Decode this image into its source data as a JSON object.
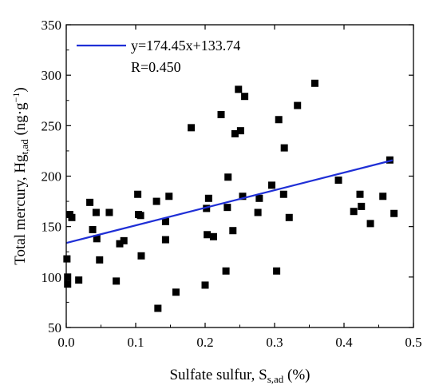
{
  "chart_data": {
    "type": "scatter",
    "xlabel": "Sulfate sulfur, S",
    "xlabel_sub": "s,ad",
    "xlabel_suffix": " (%)",
    "ylabel": "Total mercury, Hg",
    "ylabel_sub": "t,ad",
    "ylabel_suffix": " (ng·g",
    "ylabel_sup": "−1",
    "ylabel_close": ")",
    "xlim": [
      0.0,
      0.5
    ],
    "ylim": [
      50,
      350
    ],
    "xticks": [
      0.0,
      0.1,
      0.2,
      0.3,
      0.4,
      0.5
    ],
    "xtick_labels": [
      "0.0",
      "0.1",
      "0.2",
      "0.3",
      "0.4",
      "0.5"
    ],
    "yticks": [
      50,
      100,
      150,
      200,
      250,
      300,
      350
    ],
    "ytick_labels": [
      "50",
      "100",
      "150",
      "200",
      "250",
      "300",
      "350"
    ],
    "grid": false,
    "legend_position": "top-left",
    "fit": {
      "slope": 174.45,
      "intercept": 133.74,
      "x_range": [
        0.0,
        0.47
      ],
      "equation_label": "y=174.45x+133.74",
      "r_label": "R=0.450",
      "color": "#1f2fd6"
    },
    "marker_color": "#000000",
    "points": [
      {
        "x": 0.001,
        "y": 118
      },
      {
        "x": 0.002,
        "y": 100
      },
      {
        "x": 0.002,
        "y": 93
      },
      {
        "x": 0.005,
        "y": 162
      },
      {
        "x": 0.008,
        "y": 159
      },
      {
        "x": 0.018,
        "y": 97
      },
      {
        "x": 0.034,
        "y": 174
      },
      {
        "x": 0.038,
        "y": 147
      },
      {
        "x": 0.043,
        "y": 164
      },
      {
        "x": 0.044,
        "y": 138
      },
      {
        "x": 0.048,
        "y": 117
      },
      {
        "x": 0.062,
        "y": 164
      },
      {
        "x": 0.072,
        "y": 96
      },
      {
        "x": 0.077,
        "y": 133
      },
      {
        "x": 0.083,
        "y": 136
      },
      {
        "x": 0.103,
        "y": 182
      },
      {
        "x": 0.104,
        "y": 162
      },
      {
        "x": 0.107,
        "y": 161
      },
      {
        "x": 0.108,
        "y": 121
      },
      {
        "x": 0.13,
        "y": 175
      },
      {
        "x": 0.132,
        "y": 69
      },
      {
        "x": 0.143,
        "y": 155
      },
      {
        "x": 0.143,
        "y": 137
      },
      {
        "x": 0.148,
        "y": 180
      },
      {
        "x": 0.158,
        "y": 85
      },
      {
        "x": 0.18,
        "y": 248
      },
      {
        "x": 0.2,
        "y": 92
      },
      {
        "x": 0.202,
        "y": 168
      },
      {
        "x": 0.203,
        "y": 142
      },
      {
        "x": 0.205,
        "y": 178
      },
      {
        "x": 0.212,
        "y": 140
      },
      {
        "x": 0.223,
        "y": 261
      },
      {
        "x": 0.23,
        "y": 106
      },
      {
        "x": 0.232,
        "y": 169
      },
      {
        "x": 0.233,
        "y": 199
      },
      {
        "x": 0.24,
        "y": 146
      },
      {
        "x": 0.243,
        "y": 242
      },
      {
        "x": 0.248,
        "y": 286
      },
      {
        "x": 0.251,
        "y": 245
      },
      {
        "x": 0.254,
        "y": 180
      },
      {
        "x": 0.257,
        "y": 279
      },
      {
        "x": 0.276,
        "y": 164
      },
      {
        "x": 0.278,
        "y": 178
      },
      {
        "x": 0.296,
        "y": 191
      },
      {
        "x": 0.303,
        "y": 106
      },
      {
        "x": 0.306,
        "y": 256
      },
      {
        "x": 0.313,
        "y": 182
      },
      {
        "x": 0.314,
        "y": 228
      },
      {
        "x": 0.321,
        "y": 159
      },
      {
        "x": 0.333,
        "y": 270
      },
      {
        "x": 0.358,
        "y": 292
      },
      {
        "x": 0.392,
        "y": 196
      },
      {
        "x": 0.414,
        "y": 165
      },
      {
        "x": 0.423,
        "y": 182
      },
      {
        "x": 0.425,
        "y": 170
      },
      {
        "x": 0.438,
        "y": 153
      },
      {
        "x": 0.456,
        "y": 180
      },
      {
        "x": 0.466,
        "y": 216
      },
      {
        "x": 0.472,
        "y": 163
      }
    ]
  }
}
